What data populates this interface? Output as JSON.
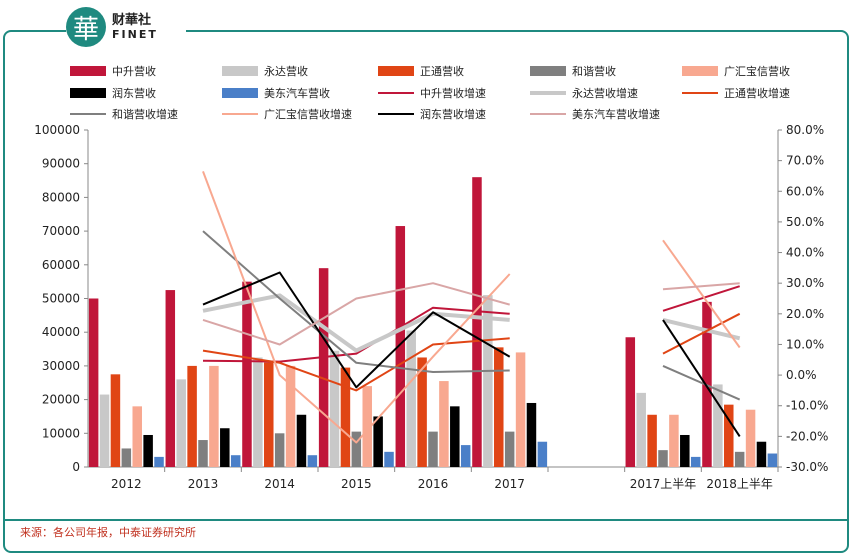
{
  "header": {
    "logo_char": "華",
    "brand_cn": "财華社",
    "brand_en": "FINET"
  },
  "footer": {
    "source": "来源：各公司年报，中泰证券研究所"
  },
  "chart_data": {
    "type": "bar",
    "categories": [
      "2012",
      "2013",
      "2014",
      "2015",
      "2016",
      "2017",
      "",
      "2017上半年",
      "2018上半年"
    ],
    "left_axis": {
      "min": 0,
      "max": 100000,
      "step": 10000,
      "ticks": [
        "0",
        "10000",
        "20000",
        "30000",
        "40000",
        "50000",
        "60000",
        "70000",
        "80000",
        "90000",
        "100000"
      ]
    },
    "right_axis": {
      "min": -0.3,
      "max": 0.8,
      "step": 0.1,
      "ticks": [
        "-30.0%",
        "-20.0%",
        "-10.0%",
        "0.0%",
        "10.0%",
        "20.0%",
        "30.0%",
        "40.0%",
        "50.0%",
        "60.0%",
        "70.0%",
        "80.0%"
      ]
    },
    "legend_position": "top",
    "bar_series": [
      {
        "name": "中升营收",
        "color": "#c0163a",
        "values": [
          50000,
          52500,
          55000,
          59000,
          71500,
          86000,
          null,
          38500,
          49000
        ]
      },
      {
        "name": "永达营收",
        "color": "#c8c8c8",
        "values": [
          21500,
          26000,
          32500,
          34500,
          40500,
          51000,
          null,
          22000,
          24500
        ]
      },
      {
        "name": "正通营收",
        "color": "#e04515",
        "values": [
          27500,
          30000,
          31000,
          29500,
          32500,
          35500,
          null,
          15500,
          18500
        ]
      },
      {
        "name": "和谐营收",
        "color": "#7f7f7f",
        "values": [
          5500,
          8000,
          10000,
          10500,
          10500,
          10500,
          null,
          5000,
          4500
        ]
      },
      {
        "name": "广汇宝信营收",
        "color": "#f8a890",
        "values": [
          18000,
          30000,
          30000,
          24000,
          25500,
          34000,
          null,
          15500,
          17000
        ]
      },
      {
        "name": "润东营收",
        "color": "#000000",
        "values": [
          9500,
          11500,
          15500,
          15000,
          18000,
          19000,
          null,
          9500,
          7500
        ]
      },
      {
        "name": "美东汽车营收",
        "color": "#4a7fc8",
        "values": [
          3000,
          3500,
          3500,
          4500,
          6500,
          7500,
          null,
          3000,
          4000
        ]
      }
    ],
    "line_series": [
      {
        "name": "中升营收增速",
        "color": "#c0163a",
        "width": 2,
        "values": [
          null,
          0.047,
          0.044,
          0.07,
          0.22,
          0.2,
          null,
          0.21,
          0.29
        ]
      },
      {
        "name": "永达营收增速",
        "color": "#c8c8c8",
        "width": 4,
        "values": [
          null,
          0.21,
          0.26,
          0.08,
          0.2,
          0.18,
          null,
          0.18,
          0.12
        ]
      },
      {
        "name": "正通营收增速",
        "color": "#e04515",
        "width": 2,
        "values": [
          null,
          0.08,
          0.04,
          -0.05,
          0.1,
          0.12,
          null,
          0.07,
          0.2
        ]
      },
      {
        "name": "和谐营收增速",
        "color": "#7f7f7f",
        "width": 2,
        "values": [
          null,
          0.47,
          0.25,
          0.04,
          0.01,
          0.015,
          null,
          0.03,
          -0.08
        ]
      },
      {
        "name": "广汇宝信营收增速",
        "color": "#f8a890",
        "width": 2,
        "values": [
          null,
          0.665,
          0.0,
          -0.22,
          0.06,
          0.33,
          null,
          0.44,
          0.09
        ]
      },
      {
        "name": "润东营收增速",
        "color": "#000000",
        "width": 2,
        "values": [
          null,
          0.23,
          0.335,
          -0.04,
          0.205,
          0.06,
          null,
          0.18,
          -0.2
        ]
      },
      {
        "name": "美东汽车营收增速",
        "color": "#d9a6a6",
        "width": 2,
        "values": [
          null,
          0.18,
          0.1,
          0.25,
          0.3,
          0.23,
          null,
          0.28,
          0.3
        ]
      }
    ]
  }
}
